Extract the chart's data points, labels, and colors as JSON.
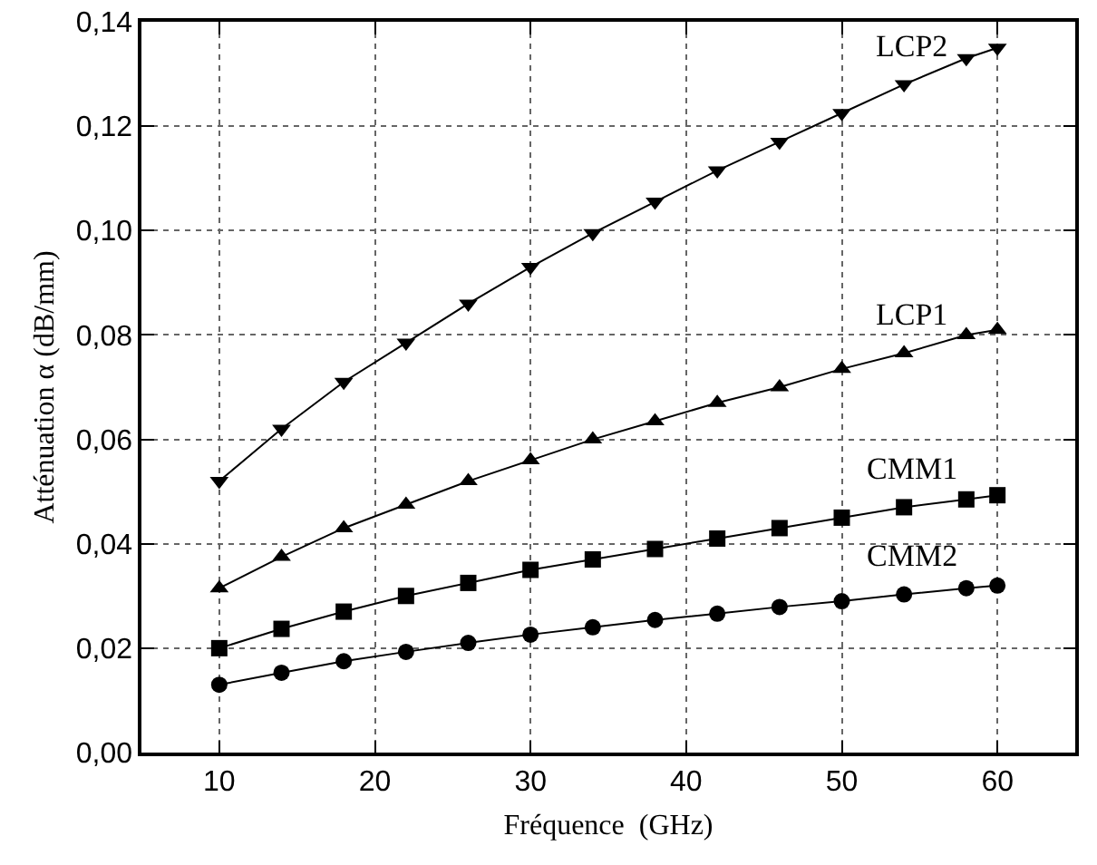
{
  "chart_data": {
    "type": "line",
    "xlabel": "Fréquence  (GHz)",
    "ylabel": "Atténuation α (dB/mm)",
    "x": [
      10,
      14,
      18,
      22,
      26,
      30,
      34,
      38,
      42,
      46,
      50,
      54,
      58,
      60
    ],
    "series": [
      {
        "name": "LCP2",
        "color": "#000000",
        "marker": "triangle-down",
        "values": [
          0.052,
          0.062,
          0.071,
          0.0785,
          0.086,
          0.093,
          0.0995,
          0.1055,
          0.1115,
          0.117,
          0.1225,
          0.128,
          0.133,
          0.135
        ]
      },
      {
        "name": "LCP1",
        "color": "#000000",
        "marker": "triangle",
        "values": [
          0.0315,
          0.0375,
          0.043,
          0.0475,
          0.052,
          0.056,
          0.06,
          0.0635,
          0.067,
          0.07,
          0.0735,
          0.0765,
          0.08,
          0.081
        ]
      },
      {
        "name": "CMM1",
        "color": "#000000",
        "marker": "square",
        "values": [
          0.02,
          0.0237,
          0.027,
          0.03,
          0.0325,
          0.035,
          0.037,
          0.039,
          0.041,
          0.043,
          0.045,
          0.047,
          0.0485,
          0.0493
        ]
      },
      {
        "name": "CMM2",
        "color": "#000000",
        "marker": "circle",
        "values": [
          0.013,
          0.0153,
          0.0175,
          0.0193,
          0.021,
          0.0226,
          0.024,
          0.0254,
          0.0266,
          0.0279,
          0.029,
          0.0303,
          0.0315,
          0.032
        ]
      }
    ],
    "xlim": [
      5,
      65
    ],
    "xticks": [
      10,
      20,
      30,
      40,
      50,
      60
    ],
    "ylim": [
      0,
      0.14
    ],
    "yticks": [
      {
        "value": 0,
        "label": "0,00"
      },
      {
        "value": 0.02,
        "label": "0,02"
      },
      {
        "value": 0.04,
        "label": "0,04"
      },
      {
        "value": 0.06,
        "label": "0,06"
      },
      {
        "value": 0.08,
        "label": "0,08"
      },
      {
        "value": 0.1,
        "label": "0,10"
      },
      {
        "value": 0.12,
        "label": "0,12"
      },
      {
        "value": 0.14,
        "label": "0,14"
      }
    ],
    "grid": true,
    "line_style": "solid"
  }
}
